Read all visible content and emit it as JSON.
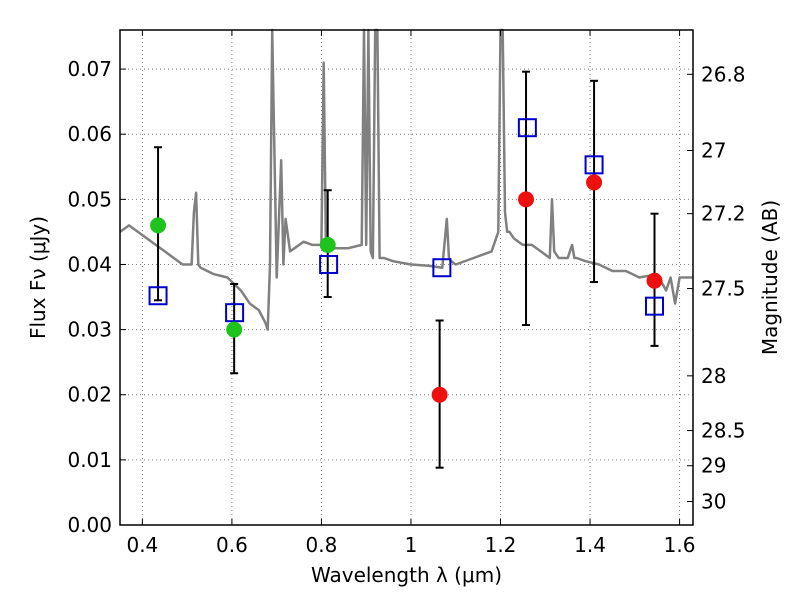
{
  "chart_data": {
    "type": "scatter",
    "xlabel": "Wavelength λ (μm)",
    "ylabel": "Flux Fν (μJy)",
    "y2label": "Magnitude (AB)",
    "xlim": [
      0.35,
      1.63
    ],
    "ylim": [
      0.0,
      0.076
    ],
    "grid": true,
    "x_ticks": [
      0.4,
      0.6,
      0.8,
      1.0,
      1.2,
      1.4,
      1.6
    ],
    "x_tick_labels": [
      "0.4",
      "0.6",
      "0.8",
      "1",
      "1.2",
      "1.4",
      "1.6"
    ],
    "y_ticks": [
      0.0,
      0.01,
      0.02,
      0.03,
      0.04,
      0.05,
      0.06,
      0.07
    ],
    "y_tick_labels": [
      "0.00",
      "0.01",
      "0.02",
      "0.03",
      "0.04",
      "0.05",
      "0.06",
      "0.07"
    ],
    "mag_ticks": [
      {
        "label": "26.8",
        "flux": 0.0692
      },
      {
        "label": "27",
        "flux": 0.0575
      },
      {
        "label": "27.2",
        "flux": 0.0478
      },
      {
        "label": "27.5",
        "flux": 0.0363
      },
      {
        "label": "28",
        "flux": 0.0229
      },
      {
        "label": "28.5",
        "flux": 0.0145
      },
      {
        "label": "29",
        "flux": 0.0091
      },
      {
        "label": "30",
        "flux": 0.0036
      }
    ],
    "colors": {
      "model": "#808080",
      "green_points": "#1ec31e",
      "red_points": "#ee0f0f",
      "model_squares": "#0000cc",
      "errorbars": "#000000",
      "grid": "#7f7f7f"
    },
    "series": [
      {
        "marker": "circle",
        "color": "green",
        "points": [
          {
            "x": 0.435,
            "y": 0.046,
            "yerr_low": 0.0345,
            "yerr_high": 0.058
          },
          {
            "x": 0.605,
            "y": 0.03,
            "yerr_low": 0.0233,
            "yerr_high": 0.037
          },
          {
            "x": 0.814,
            "y": 0.043,
            "yerr_low": 0.035,
            "yerr_high": 0.0514
          }
        ]
      },
      {
        "marker": "circle",
        "color": "red",
        "points": [
          {
            "x": 1.064,
            "y": 0.02,
            "yerr_low": 0.0088,
            "yerr_high": 0.0314
          },
          {
            "x": 1.257,
            "y": 0.05,
            "yerr_low": 0.0307,
            "yerr_high": 0.0696
          },
          {
            "x": 1.409,
            "y": 0.0526,
            "yerr_low": 0.0373,
            "yerr_high": 0.0682
          },
          {
            "x": 1.544,
            "y": 0.0375,
            "yerr_low": 0.0275,
            "yerr_high": 0.0478
          }
        ]
      },
      {
        "marker": "square",
        "color": "blue",
        "points": [
          {
            "x": 0.435,
            "y": 0.0352
          },
          {
            "x": 0.606,
            "y": 0.0326
          },
          {
            "x": 0.816,
            "y": 0.04
          },
          {
            "x": 1.069,
            "y": 0.0395
          },
          {
            "x": 1.26,
            "y": 0.061
          },
          {
            "x": 1.409,
            "y": 0.0553
          },
          {
            "x": 1.544,
            "y": 0.0336
          }
        ]
      },
      {
        "type": "line",
        "color": "gray",
        "x": [
          0.35,
          0.37,
          0.39,
          0.41,
          0.43,
          0.45,
          0.47,
          0.49,
          0.51,
          0.515,
          0.52,
          0.525,
          0.53,
          0.56,
          0.59,
          0.62,
          0.64,
          0.66,
          0.675,
          0.68,
          0.685,
          0.69,
          0.7,
          0.71,
          0.715,
          0.72,
          0.73,
          0.74,
          0.76,
          0.78,
          0.8,
          0.805,
          0.81,
          0.815,
          0.83,
          0.86,
          0.89,
          0.895,
          0.9,
          0.905,
          0.91,
          0.915,
          0.92,
          0.925,
          0.93,
          0.94,
          0.96,
          1.0,
          1.04,
          1.07,
          1.08,
          1.085,
          1.09,
          1.1,
          1.14,
          1.18,
          1.195,
          1.2,
          1.205,
          1.21,
          1.215,
          1.22,
          1.23,
          1.24,
          1.25,
          1.27,
          1.29,
          1.31,
          1.315,
          1.32,
          1.33,
          1.35,
          1.36,
          1.365,
          1.37,
          1.39,
          1.42,
          1.45,
          1.48,
          1.51,
          1.55,
          1.57,
          1.58,
          1.59,
          1.6,
          1.61,
          1.63
        ],
        "y": [
          0.045,
          0.046,
          0.045,
          0.044,
          0.043,
          0.042,
          0.041,
          0.04,
          0.04,
          0.048,
          0.051,
          0.04,
          0.0395,
          0.0385,
          0.038,
          0.036,
          0.034,
          0.033,
          0.031,
          0.03,
          0.04,
          0.076,
          0.038,
          0.056,
          0.04,
          0.047,
          0.042,
          0.0425,
          0.0435,
          0.043,
          0.043,
          0.071,
          0.043,
          0.042,
          0.0425,
          0.0425,
          0.043,
          0.076,
          0.043,
          0.076,
          0.042,
          0.041,
          0.076,
          0.076,
          0.041,
          0.041,
          0.0405,
          0.04,
          0.0398,
          0.0395,
          0.047,
          0.041,
          0.0405,
          0.04,
          0.041,
          0.042,
          0.045,
          0.076,
          0.076,
          0.048,
          0.045,
          0.045,
          0.044,
          0.0435,
          0.043,
          0.043,
          0.042,
          0.041,
          0.05,
          0.042,
          0.041,
          0.041,
          0.043,
          0.041,
          0.041,
          0.0405,
          0.04,
          0.039,
          0.039,
          0.038,
          0.0385,
          0.036,
          0.038,
          0.034,
          0.038,
          0.038,
          0.038
        ]
      }
    ]
  }
}
